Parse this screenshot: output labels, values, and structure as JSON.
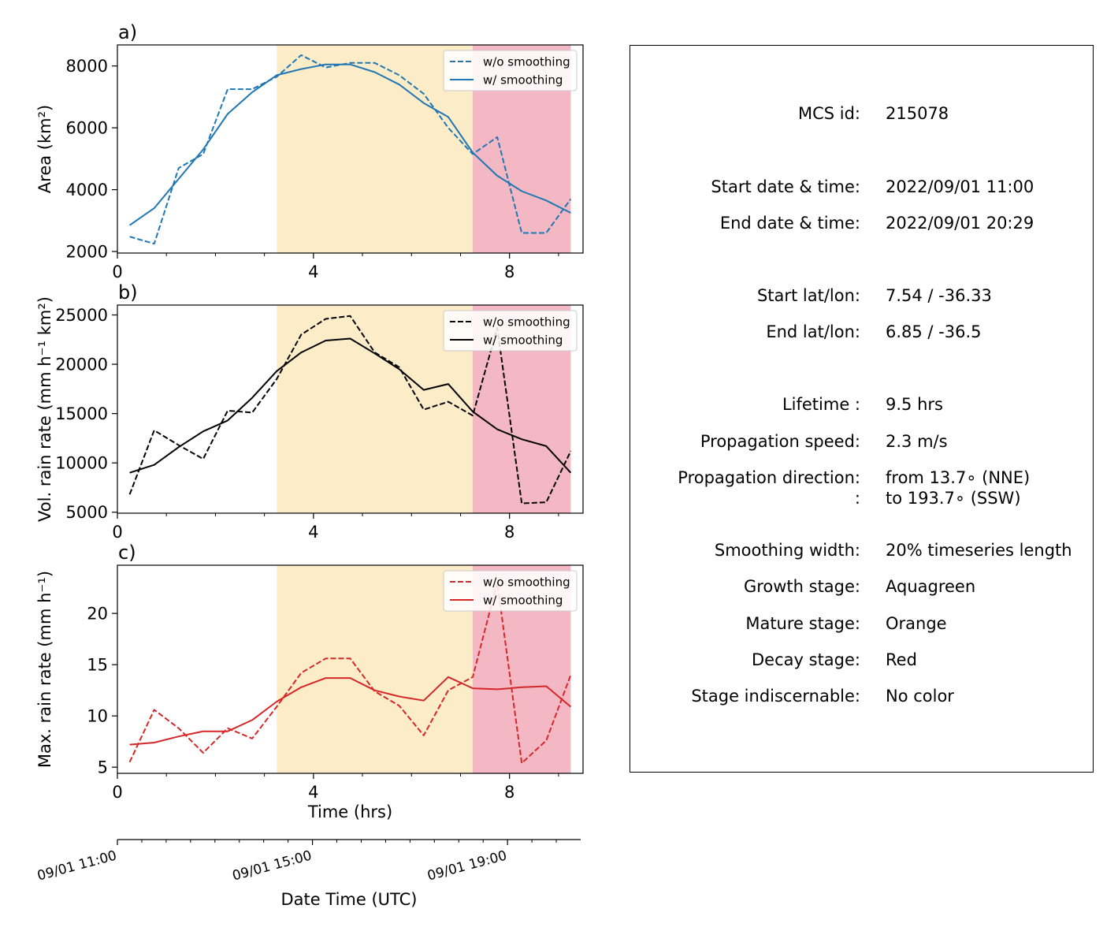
{
  "colors": {
    "mature_stage": "#fdecc8",
    "decay_stage": "#f3b8c4",
    "area_series": "#1f77b4",
    "vol_series": "#000000",
    "max_series": "#d62728"
  },
  "chart_data": [
    {
      "panel": "a)",
      "type": "line",
      "title": "",
      "xlabel": "",
      "ylabel": "Area  (km²)",
      "xlim": [
        0,
        9.5
      ],
      "ylim": [
        1950,
        8680
      ],
      "xticks": [
        "0",
        "4",
        "8"
      ],
      "yticks": [
        "2000",
        "4000",
        "6000",
        "8000"
      ],
      "shaded_regions": [
        {
          "stage": "mature",
          "start": 3.25,
          "end": 7.25
        },
        {
          "stage": "decay",
          "start": 7.25,
          "end": 9.25
        }
      ],
      "legend": "top-right",
      "x": [
        0.25,
        0.75,
        1.25,
        1.75,
        2.25,
        2.75,
        3.25,
        3.75,
        4.25,
        4.75,
        5.25,
        5.75,
        6.25,
        6.75,
        7.25,
        7.75,
        8.25,
        8.75,
        9.25
      ],
      "series": [
        {
          "name": "w/o smoothing",
          "style": "dashed",
          "values": [
            2480,
            2250,
            4700,
            5150,
            7250,
            7250,
            7650,
            8350,
            7950,
            8100,
            8100,
            7700,
            7100,
            6000,
            5150,
            5700,
            2600,
            2600,
            3700
          ]
        },
        {
          "name": "w/ smoothing",
          "style": "solid",
          "values": [
            2850,
            3400,
            4350,
            5300,
            6450,
            7150,
            7700,
            7900,
            8050,
            8050,
            7800,
            7400,
            6800,
            6350,
            5200,
            4450,
            3950,
            3650,
            3250
          ]
        }
      ]
    },
    {
      "panel": "b)",
      "type": "line",
      "title": "",
      "xlabel": "",
      "ylabel": "Vol. rain rate (mm h⁻¹ km²)",
      "xlim": [
        0,
        9.5
      ],
      "ylim": [
        4900,
        26000
      ],
      "xticks": [
        "0",
        "4",
        "8"
      ],
      "yticks": [
        "5000",
        "10000",
        "15000",
        "20000",
        "25000"
      ],
      "shaded_regions": [
        {
          "stage": "mature",
          "start": 3.25,
          "end": 7.25
        },
        {
          "stage": "decay",
          "start": 7.25,
          "end": 9.25
        }
      ],
      "legend": "top-right",
      "x": [
        0.25,
        0.75,
        1.25,
        1.75,
        2.25,
        2.75,
        3.25,
        3.75,
        4.25,
        4.75,
        5.25,
        5.75,
        6.25,
        6.75,
        7.25,
        7.75,
        8.25,
        8.75,
        9.25
      ],
      "series": [
        {
          "name": "w/o smoothing",
          "style": "dashed",
          "values": [
            6800,
            13300,
            11800,
            10400,
            15300,
            15100,
            18500,
            23000,
            24600,
            24900,
            21200,
            19700,
            15400,
            16200,
            14800,
            23700,
            5900,
            6000,
            11200
          ]
        },
        {
          "name": "w/ smoothing",
          "style": "solid",
          "values": [
            9000,
            9800,
            11600,
            13200,
            14300,
            16600,
            19300,
            21200,
            22400,
            22600,
            21100,
            19500,
            17400,
            18000,
            15200,
            13400,
            12400,
            11700,
            9000
          ]
        }
      ]
    },
    {
      "panel": "c)",
      "type": "line",
      "title": "",
      "xlabel": "Time (hrs)",
      "ylabel": "Max. rain rate  (mm h⁻¹)",
      "xlim": [
        0,
        9.5
      ],
      "ylim": [
        4.4,
        24.7
      ],
      "xticks": [
        "0",
        "4",
        "8"
      ],
      "yticks": [
        "5",
        "10",
        "15",
        "20"
      ],
      "shaded_regions": [
        {
          "stage": "mature",
          "start": 3.25,
          "end": 7.25
        },
        {
          "stage": "decay",
          "start": 7.25,
          "end": 9.25
        }
      ],
      "legend": "top-right",
      "x": [
        0.25,
        0.75,
        1.25,
        1.75,
        2.25,
        2.75,
        3.25,
        3.75,
        4.25,
        4.75,
        5.25,
        5.75,
        6.25,
        6.75,
        7.25,
        7.75,
        8.25,
        8.75,
        9.25
      ],
      "series": [
        {
          "name": "w/o smoothing",
          "style": "dashed",
          "values": [
            5.5,
            10.6,
            8.8,
            6.4,
            8.8,
            7.8,
            10.9,
            14.2,
            15.6,
            15.6,
            12.4,
            11.0,
            8.1,
            12.5,
            13.8,
            23.0,
            5.4,
            7.6,
            14.0
          ]
        },
        {
          "name": "w/ smoothing",
          "style": "solid",
          "values": [
            7.2,
            7.4,
            8.0,
            8.5,
            8.5,
            9.6,
            11.4,
            12.8,
            13.7,
            13.7,
            12.5,
            11.9,
            11.5,
            13.8,
            12.7,
            12.6,
            12.8,
            12.9,
            10.9
          ]
        }
      ]
    }
  ],
  "datetime_axis": {
    "label": "Date Time (UTC)",
    "ticks": [
      {
        "hours": 0,
        "label": "09/01 11:00"
      },
      {
        "hours": 4,
        "label": "09/01 15:00"
      },
      {
        "hours": 8,
        "label": "09/01 19:00"
      }
    ]
  },
  "info": [
    {
      "key": "MCS id:",
      "value": "215078"
    },
    {
      "key": "Start date & time:",
      "value": "2022/09/01 11:00"
    },
    {
      "key": "End date & time:",
      "value": "2022/09/01 20:29"
    },
    {
      "key": "Start lat/lon:",
      "value": "7.54 / -36.33"
    },
    {
      "key": "End lat/lon:",
      "value": "6.85 / -36.5"
    },
    {
      "key": "Lifetime :",
      "value": "9.5 hrs"
    },
    {
      "key": "Propagation speed:",
      "value": "2.3 m/s"
    },
    {
      "key": "Propagation direction:",
      "value": "from  13.7∘ (NNE)"
    },
    {
      "key": ":",
      "value": "to   193.7∘ (SSW)"
    },
    {
      "key": "Smoothing width:",
      "value": "20% timeseries length"
    },
    {
      "key": "Growth stage:",
      "value": "Aquagreen"
    },
    {
      "key": "Mature stage:",
      "value": "Orange"
    },
    {
      "key": "Decay stage:",
      "value": "Red"
    },
    {
      "key": "Stage indiscernable:",
      "value": "No color"
    }
  ]
}
